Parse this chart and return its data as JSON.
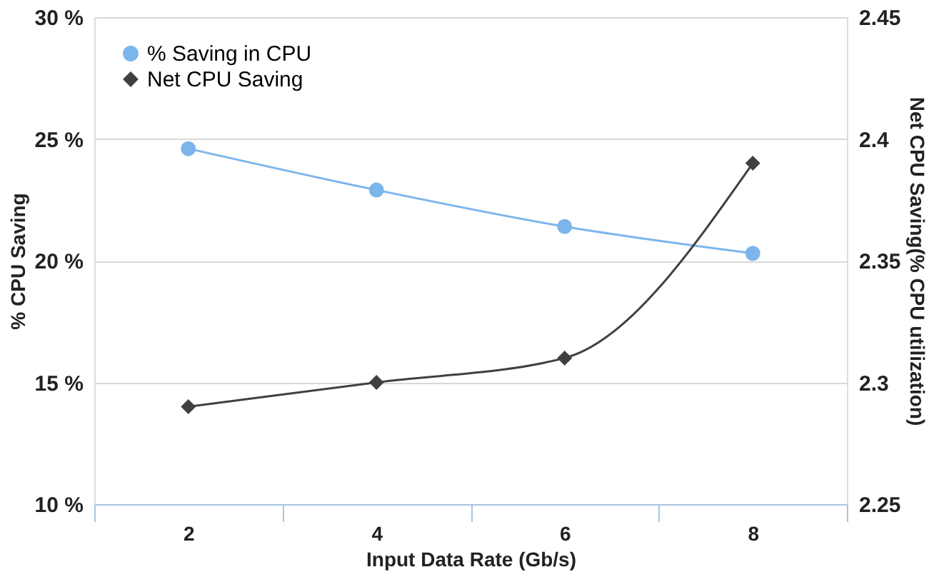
{
  "chart_data": {
    "type": "line",
    "categories": [
      "2",
      "4",
      "6",
      "8"
    ],
    "xlabel": "Input Data Rate (Gb/s)",
    "ylabel": "% CPU Saving",
    "y2label": "Net CPU Saving(% CPU utilization)",
    "ylim": [
      10,
      30
    ],
    "yticks": [
      {
        "value": 10,
        "label": "10 %"
      },
      {
        "value": 15,
        "label": "15 %"
      },
      {
        "value": 20,
        "label": "20 %"
      },
      {
        "value": 25,
        "label": "25 %"
      },
      {
        "value": 30,
        "label": "30 %"
      }
    ],
    "y2lim": [
      2.25,
      2.45
    ],
    "y2ticks": [
      2.25,
      2.3,
      2.35,
      2.4,
      2.45
    ],
    "grid": "y",
    "legend": "top left",
    "series": [
      {
        "name": "% Saving in CPU",
        "color": "#7cb5ec",
        "values": [
          24.6,
          22.9,
          21.4,
          20.3
        ],
        "marker": "circle"
      },
      {
        "name": "Net CPU Saving",
        "color": "#404040",
        "values": [
          2.29,
          2.3,
          2.31,
          2.39
        ],
        "marker": "diamond",
        "axis": "y2"
      }
    ]
  }
}
